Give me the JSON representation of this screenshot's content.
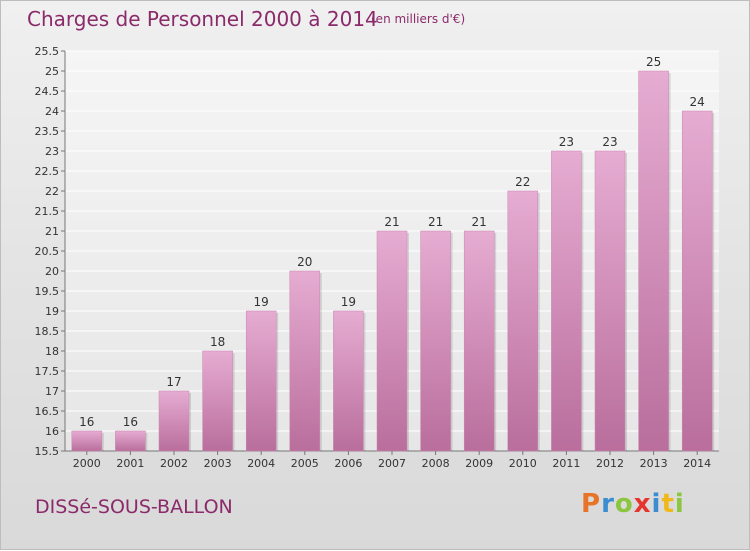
{
  "header": {
    "title": "Charges de Personnel 2000 à 2014",
    "subtitle": "(en milliers d'€)"
  },
  "footer": {
    "commune": "DISSé-SOUS-BALLON",
    "logo": [
      "P",
      "r",
      "o",
      "x",
      "i",
      "t",
      "i"
    ],
    "logo_colors": [
      "#e8742a",
      "#3a8dd1",
      "#8cc63e",
      "#e5352d",
      "#3a8dd1",
      "#f1b81a",
      "#8cc63e"
    ]
  },
  "colors": {
    "bar": "#d99bc4",
    "bar_dark": "#b8699a",
    "title": "#8b2a6a"
  },
  "chart_data": {
    "type": "bar",
    "title": "Charges de Personnel 2000 à 2014",
    "subtitle": "(en milliers d'€)",
    "categories": [
      "2000",
      "2001",
      "2002",
      "2003",
      "2004",
      "2005",
      "2006",
      "2007",
      "2008",
      "2009",
      "2010",
      "2011",
      "2012",
      "2013",
      "2014"
    ],
    "values": [
      16,
      16,
      17,
      18,
      19,
      20,
      19,
      21,
      21,
      21,
      22,
      23,
      23,
      25,
      24
    ],
    "value_labels": [
      "16",
      "16",
      "17",
      "18",
      "19",
      "20",
      "19",
      "21",
      "21",
      "21",
      "22",
      "23",
      "23",
      "25",
      "24"
    ],
    "ylim": [
      15.5,
      25.5
    ],
    "yticks": [
      15.5,
      16,
      16.5,
      17,
      17.5,
      18,
      18.5,
      19,
      19.5,
      20,
      20.5,
      21,
      21.5,
      22,
      22.5,
      23,
      23.5,
      24,
      24.5,
      25,
      25.5
    ],
    "ytick_labels": [
      "15.5",
      "16",
      "16.5",
      "17",
      "17.5",
      "18",
      "18.5",
      "19",
      "19.5",
      "20",
      "20.5",
      "21",
      "21.5",
      "22",
      "22.5",
      "23",
      "23.5",
      "24",
      "24.5",
      "25",
      "25.5"
    ],
    "grid": true,
    "legend": "none"
  }
}
